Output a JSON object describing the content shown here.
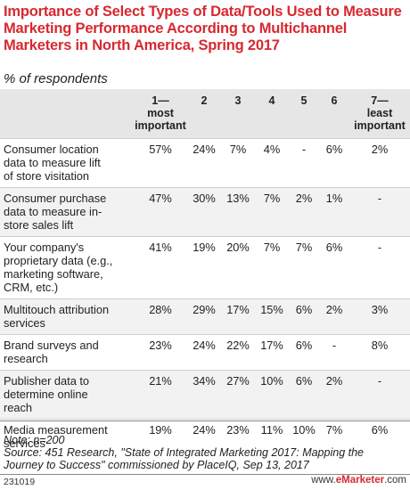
{
  "title": "Importance of Select Types of Data/Tools Used to Measure Marketing Performance According to Multichannel Marketers in North America, Spring 2017",
  "subtitle": "% of respondents",
  "chart_data": {
    "type": "table",
    "columns": [
      {
        "line1": "1—",
        "line2": "most",
        "line3": "important"
      },
      {
        "line1": "2",
        "line2": "",
        "line3": ""
      },
      {
        "line1": "3",
        "line2": "",
        "line3": ""
      },
      {
        "line1": "4",
        "line2": "",
        "line3": ""
      },
      {
        "line1": "5",
        "line2": "",
        "line3": ""
      },
      {
        "line1": "6",
        "line2": "",
        "line3": ""
      },
      {
        "line1": "7—",
        "line2": "least",
        "line3": "important"
      }
    ],
    "rows": [
      {
        "label": [
          "Consumer location",
          "data to measure lift",
          "of store visitation"
        ],
        "values": [
          "57%",
          "24%",
          "7%",
          "4%",
          "-",
          "6%",
          "2%"
        ]
      },
      {
        "label": [
          "Consumer purchase",
          "data to measure in-",
          "store sales lift"
        ],
        "values": [
          "47%",
          "30%",
          "13%",
          "7%",
          "2%",
          "1%",
          "-"
        ]
      },
      {
        "label": [
          "Your company's",
          "proprietary data (e.g.,",
          "marketing software,",
          "CRM, etc.)"
        ],
        "values": [
          "41%",
          "19%",
          "20%",
          "7%",
          "7%",
          "6%",
          "-"
        ]
      },
      {
        "label": [
          "Multitouch attribution",
          "services"
        ],
        "values": [
          "28%",
          "29%",
          "17%",
          "15%",
          "6%",
          "2%",
          "3%"
        ]
      },
      {
        "label": [
          "Brand surveys and",
          "research"
        ],
        "values": [
          "23%",
          "24%",
          "22%",
          "17%",
          "6%",
          "-",
          "8%"
        ]
      },
      {
        "label": [
          "Publisher data to",
          "determine online",
          "reach"
        ],
        "values": [
          "21%",
          "34%",
          "27%",
          "10%",
          "6%",
          "2%",
          "-"
        ]
      },
      {
        "label": [
          "Media measurement",
          "services"
        ],
        "values": [
          "19%",
          "24%",
          "23%",
          "11%",
          "10%",
          "7%",
          "6%"
        ]
      }
    ]
  },
  "note": "Note: n=200",
  "source": "Source: 451 Research, \"State of Integrated Marketing 2017: Mapping the Journey to Success\" commissioned by PlaceIQ, Sep 13, 2017",
  "chart_id": "231019",
  "brand_prefix": "www.",
  "brand_name": "eMarketer",
  "brand_suffix": ".com"
}
